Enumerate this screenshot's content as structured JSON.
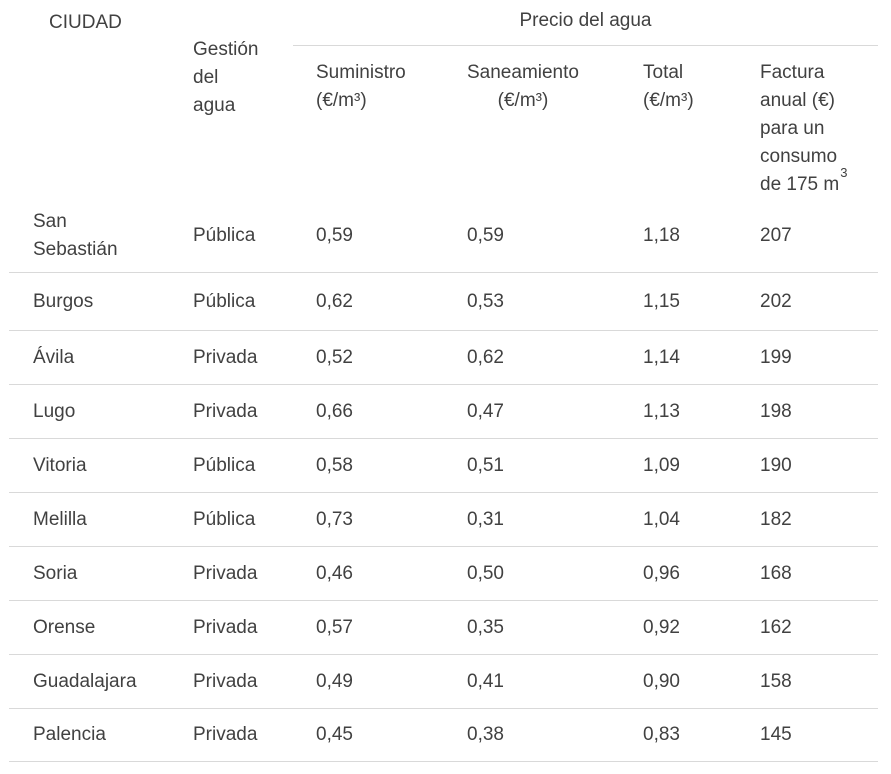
{
  "colors": {
    "text": "#414141",
    "separator_line": "#d9d9d9",
    "background": "#ffffff"
  },
  "chart_data": {
    "type": "table",
    "group_header": "Precio del agua",
    "header": {
      "city": "CIUDAD",
      "management": "Gestión del agua",
      "suministro": {
        "line1": "Suministro",
        "line2": "(€/m³)"
      },
      "saneamiento": {
        "line1": "Saneamiento",
        "line2": "(€/m³)"
      },
      "total": {
        "line1": "Total",
        "line2": "(€/m³)"
      },
      "factura": {
        "text": "Factura anual (€) para un consumo de 175 m",
        "sup": "3"
      }
    },
    "rows": [
      {
        "city": "San Sebastián",
        "management": "Pública",
        "suministro": "0,59",
        "saneamiento": "0,59",
        "total": "1,18",
        "factura": "207"
      },
      {
        "city": "Burgos",
        "management": "Pública",
        "suministro": "0,62",
        "saneamiento": "0,53",
        "total": "1,15",
        "factura": "202"
      },
      {
        "city": "Ávila",
        "management": "Privada",
        "suministro": "0,52",
        "saneamiento": "0,62",
        "total": "1,14",
        "factura": "199"
      },
      {
        "city": "Lugo",
        "management": "Privada",
        "suministro": "0,66",
        "saneamiento": "0,47",
        "total": "1,13",
        "factura": "198"
      },
      {
        "city": "Vitoria",
        "management": "Pública",
        "suministro": "0,58",
        "saneamiento": "0,51",
        "total": "1,09",
        "factura": "190"
      },
      {
        "city": "Melilla",
        "management": "Pública",
        "suministro": "0,73",
        "saneamiento": "0,31",
        "total": "1,04",
        "factura": "182"
      },
      {
        "city": "Soria",
        "management": "Privada",
        "suministro": "0,46",
        "saneamiento": "0,50",
        "total": "0,96",
        "factura": "168"
      },
      {
        "city": "Orense",
        "management": "Privada",
        "suministro": "0,57",
        "saneamiento": "0,35",
        "total": "0,92",
        "factura": "162"
      },
      {
        "city": "Guadalajara",
        "management": "Privada",
        "suministro": "0,49",
        "saneamiento": "0,41",
        "total": "0,90",
        "factura": "158"
      },
      {
        "city": "Palencia",
        "management": "Privada",
        "suministro": "0,45",
        "saneamiento": "0,38",
        "total": "0,83",
        "factura": "145"
      }
    ]
  }
}
